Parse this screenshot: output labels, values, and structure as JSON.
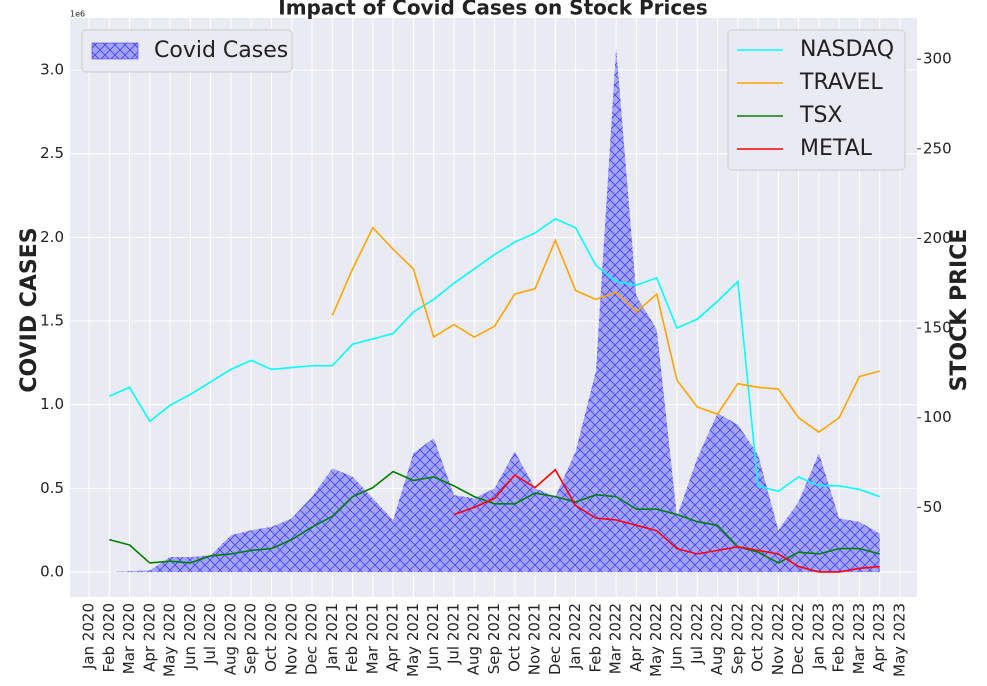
{
  "chart_data": {
    "type": "line",
    "title": "Impact of Covid Cases on Stock Prices",
    "ylabel": "COVID CASES",
    "y2label": "STOCK PRICE",
    "y_offset_label": "1e6",
    "categories": [
      "Jan 2020",
      "Feb 2020",
      "Mar 2020",
      "Apr 2020",
      "May 2020",
      "Jun 2020",
      "Jul 2020",
      "Aug 2020",
      "Sep 2020",
      "Oct 2020",
      "Nov 2020",
      "Dec 2020",
      "Jan 2021",
      "Feb 2021",
      "Mar 2021",
      "Apr 2021",
      "May 2021",
      "Jun 2021",
      "Jul 2021",
      "Aug 2021",
      "Sep 2021",
      "Oct 2021",
      "Nov 2021",
      "Dec 2021",
      "Jan 2022",
      "Feb 2022",
      "Mar 2022",
      "Apr 2022",
      "May 2022",
      "Jun 2022",
      "Jul 2022",
      "Aug 2022",
      "Sep 2022",
      "Oct 2022",
      "Nov 2022",
      "Dec 2022",
      "Jan 2023",
      "Feb 2023",
      "Mar 2023",
      "Apr 2023",
      "May 2023"
    ],
    "ylim": [
      -0.149,
      3.311
    ],
    "yticks": [
      {
        "value": 0,
        "label": "0.0"
      },
      0.5,
      {
        "value": 1,
        "label": "1.0"
      },
      1.5,
      {
        "value": 2,
        "label": "2.0"
      },
      2.5,
      {
        "value": 3,
        "label": "3.0"
      }
    ],
    "y2lim": [
      0,
      323
    ],
    "y2ticks": [
      50,
      100,
      150,
      200,
      250,
      300
    ],
    "grid": true,
    "series": [
      {
        "name": "Covid Cases",
        "type": "area",
        "axis": "y",
        "color": "#0000ff",
        "legend": "upper left",
        "values": [
          null,
          0,
          0.005,
          0.01,
          0.09,
          0.09,
          0.1,
          0.22,
          0.25,
          0.27,
          0.32,
          0.45,
          0.62,
          0.57,
          0.44,
          0.31,
          0.71,
          0.8,
          0.46,
          0.44,
          0.5,
          0.72,
          0.5,
          0.45,
          0.72,
          1.2,
          3.13,
          1.65,
          1.45,
          0.33,
          0.68,
          0.95,
          0.88,
          0.7,
          0.25,
          0.42,
          0.71,
          0.32,
          0.3,
          0.23,
          null
        ]
      },
      {
        "name": "NASDAQ",
        "type": "line",
        "axis": "y2",
        "color": "#00ffff",
        "legend": "upper right",
        "values": [
          null,
          112,
          117,
          98,
          107,
          113,
          120,
          127,
          132,
          127,
          128,
          129,
          129,
          141,
          144,
          147,
          159,
          166,
          175,
          183,
          191,
          198,
          203,
          211,
          206,
          185,
          176,
          174,
          178,
          150,
          155,
          165,
          176,
          62,
          59,
          67,
          62,
          62,
          60,
          56,
          null
        ]
      },
      {
        "name": "TRAVEL",
        "type": "line",
        "axis": "y2",
        "color": "#ffa500",
        "legend": "upper right",
        "values": [
          null,
          null,
          null,
          null,
          null,
          null,
          null,
          null,
          null,
          null,
          null,
          null,
          157,
          183,
          206,
          194,
          183,
          145,
          152,
          145,
          151,
          169,
          172,
          199,
          171,
          166,
          170,
          159,
          169,
          121,
          106,
          102,
          119,
          117,
          116,
          100,
          92,
          100,
          123,
          126,
          null
        ]
      },
      {
        "name": "TSX",
        "type": "line",
        "axis": "y2",
        "color": "#008000",
        "legend": "upper right",
        "values": [
          null,
          32,
          29,
          19,
          20,
          19,
          23,
          24,
          26,
          27,
          32,
          39,
          45,
          56,
          61,
          70,
          65,
          67,
          62,
          56,
          52,
          52,
          58,
          56,
          53,
          57,
          56,
          49,
          49,
          46,
          42,
          40,
          28,
          25,
          19,
          25,
          24,
          27,
          27,
          24,
          null
        ]
      },
      {
        "name": "METAL",
        "type": "line",
        "axis": "y2",
        "color": "#ff0000",
        "legend": "upper right",
        "values": [
          null,
          null,
          null,
          null,
          null,
          null,
          null,
          null,
          null,
          null,
          null,
          null,
          null,
          null,
          null,
          null,
          null,
          null,
          46,
          50,
          55,
          68,
          61,
          71,
          51,
          44,
          43,
          40,
          37,
          27,
          24,
          26,
          28,
          26,
          24,
          17,
          14,
          14,
          16,
          17,
          null
        ]
      }
    ]
  }
}
